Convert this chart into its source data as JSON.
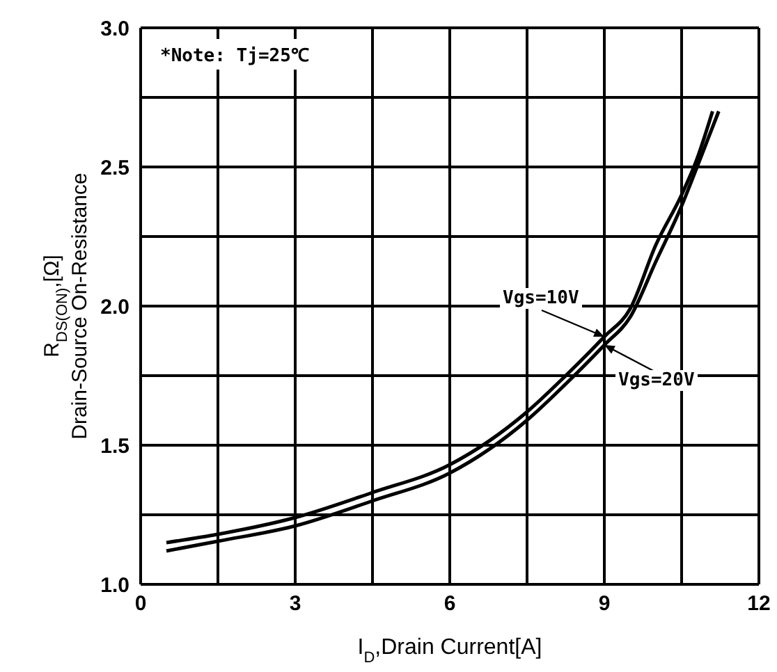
{
  "chart_data": {
    "type": "line",
    "xlabel": "I$_{D}$,Drain Current[A]",
    "ylabel": "R$_{DS(ON)}$,[Ω]\nDrain-Source On-Resistance",
    "annotations": [
      "*Note: Tj=25℃"
    ],
    "series": [
      {
        "name": "Vgs=10V",
        "color": "#000000",
        "x": [
          0.5,
          1.5,
          3,
          4.5,
          6,
          7.5,
          8.25,
          9,
          9.5,
          10,
          10.5,
          10.8,
          11.1
        ],
        "values": [
          1.15,
          1.18,
          1.24,
          1.33,
          1.43,
          1.62,
          1.75,
          1.89,
          1.99,
          2.22,
          2.4,
          2.53,
          2.7
        ]
      },
      {
        "name": "Vgs=20V",
        "color": "#000000",
        "x": [
          0.5,
          1.5,
          3,
          4.5,
          6,
          7.5,
          8.25,
          9,
          9.5,
          10,
          10.5,
          10.8,
          11.22
        ],
        "values": [
          1.12,
          1.155,
          1.21,
          1.3,
          1.4,
          1.59,
          1.72,
          1.86,
          1.96,
          2.16,
          2.36,
          2.5,
          2.7
        ]
      }
    ],
    "xlim": [
      0,
      12
    ],
    "xticks": [
      0,
      {
        "value": 1.5,
        "label": null
      },
      3,
      {
        "value": 4.5,
        "label": null
      },
      6,
      {
        "value": 7.5,
        "label": null
      },
      9,
      {
        "value": 10.5,
        "label": null
      },
      12
    ],
    "ylim": [
      1.0,
      3.0
    ],
    "yticks": [
      {
        "value": 1.0,
        "label": "1.0"
      },
      {
        "value": 1.25,
        "label": null
      },
      {
        "value": 1.5,
        "label": "1.5"
      },
      {
        "value": 1.75,
        "label": null
      },
      {
        "value": 2.0,
        "label": "2.0"
      },
      {
        "value": 2.25,
        "label": null
      },
      {
        "value": 2.5,
        "label": "2.5"
      },
      {
        "value": 2.75,
        "label": null
      },
      {
        "value": 3.0,
        "label": "3.0"
      }
    ],
    "grid": true,
    "marker": "none",
    "line_style": "solid"
  }
}
